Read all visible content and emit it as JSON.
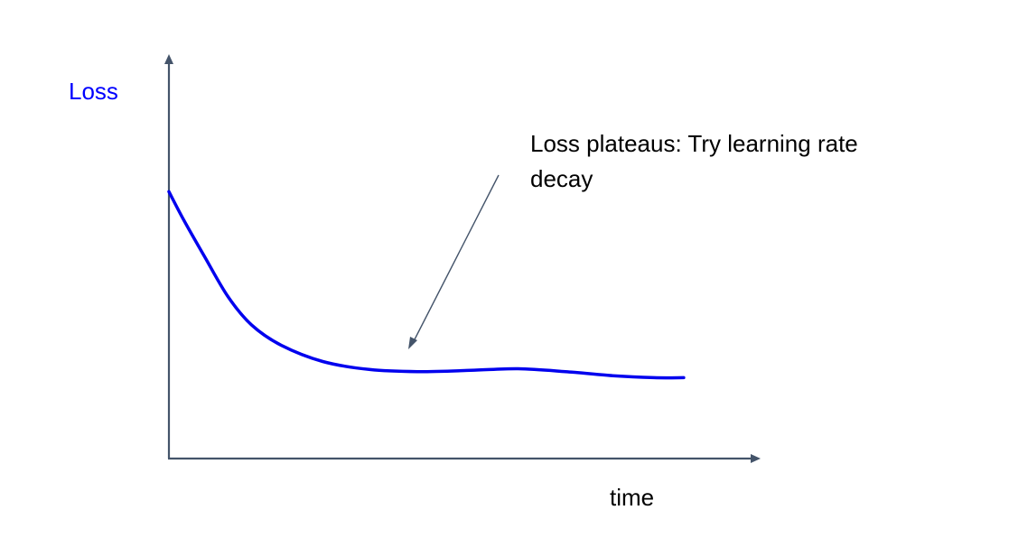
{
  "chart_data": {
    "type": "line",
    "title": "",
    "xlabel": "time",
    "ylabel": "Loss",
    "annotation": "Loss plateaus: Try learning rate decay",
    "grid": false,
    "legend": "none",
    "series": [
      {
        "color": "#0000ee",
        "points": [
          [
            0.0,
            0.66
          ],
          [
            0.025,
            0.59
          ],
          [
            0.06,
            0.5
          ],
          [
            0.1,
            0.4
          ],
          [
            0.14,
            0.33
          ],
          [
            0.19,
            0.28
          ],
          [
            0.26,
            0.24
          ],
          [
            0.34,
            0.22
          ],
          [
            0.42,
            0.215
          ],
          [
            0.51,
            0.218
          ],
          [
            0.59,
            0.222
          ],
          [
            0.67,
            0.215
          ],
          [
            0.75,
            0.205
          ],
          [
            0.82,
            0.2
          ],
          [
            0.87,
            0.2
          ]
        ]
      }
    ],
    "xlim": [
      0,
      1
    ],
    "ylim": [
      0,
      1
    ],
    "colors": {
      "axis": "#44546a",
      "line": "#0000ee",
      "ylabel": "#0000ff",
      "arrow": "#44546a"
    }
  }
}
